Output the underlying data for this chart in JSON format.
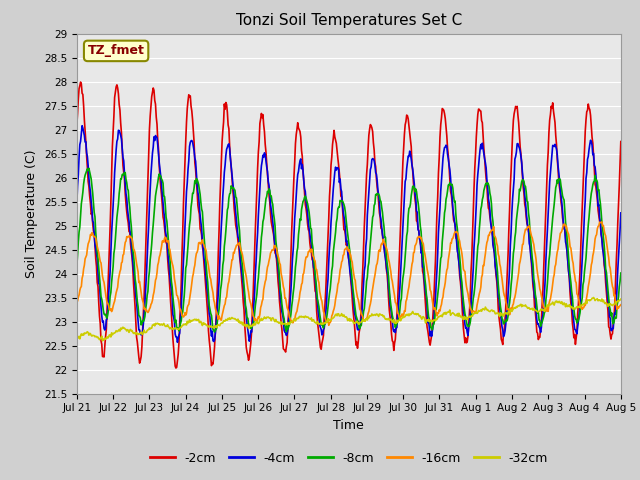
{
  "title": "Tonzi Soil Temperatures Set C",
  "xlabel": "Time",
  "ylabel": "Soil Temperature (C)",
  "ylim": [
    21.5,
    29.0
  ],
  "yticks": [
    21.5,
    22.0,
    22.5,
    23.0,
    23.5,
    24.0,
    24.5,
    25.0,
    25.5,
    26.0,
    26.5,
    27.0,
    27.5,
    28.0,
    28.5,
    29.0
  ],
  "xtick_labels": [
    "Jul 21",
    "Jul 22",
    "Jul 23",
    "Jul 24",
    "Jul 25",
    "Jul 26",
    "Jul 27",
    "Jul 28",
    "Jul 29",
    "Jul 30",
    "Jul 31",
    "Aug 1",
    "Aug 2",
    "Aug 3",
    "Aug 4",
    "Aug 5"
  ],
  "series": [
    {
      "label": "-2cm",
      "color": "#dd0000",
      "lw": 1.2
    },
    {
      "label": "-4cm",
      "color": "#0000dd",
      "lw": 1.2
    },
    {
      "label": "-8cm",
      "color": "#00aa00",
      "lw": 1.2
    },
    {
      "label": "-16cm",
      "color": "#ff8800",
      "lw": 1.2
    },
    {
      "label": "-32cm",
      "color": "#cccc00",
      "lw": 1.2
    }
  ],
  "legend_label": "TZ_fmet",
  "legend_box_color": "#ffffcc",
  "legend_box_edge": "#888800",
  "legend_text_color": "#880000",
  "plot_bg_color": "#e8e8e8",
  "fig_bg_color": "#d0d0d0",
  "grid_color": "#ffffff",
  "n_points": 720,
  "total_days": 15
}
